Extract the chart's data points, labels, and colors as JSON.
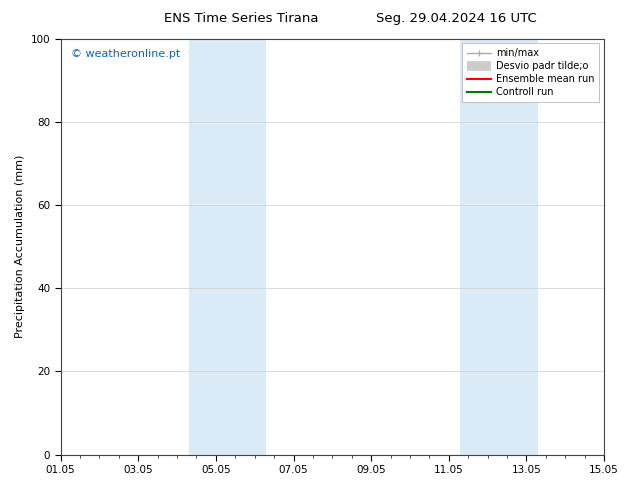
{
  "title_left": "ENS Time Series Tirana",
  "title_right": "Seg. 29.04.2024 16 UTC",
  "ylabel": "Precipitation Accumulation (mm)",
  "watermark": "© weatheronline.pt",
  "watermark_color": "#0066cc",
  "ylim": [
    0,
    100
  ],
  "yticks": [
    0,
    20,
    40,
    60,
    80,
    100
  ],
  "xlim_start": 0.0,
  "xlim_end": 14.0,
  "xtick_positions": [
    0,
    2,
    4,
    6,
    8,
    10,
    12,
    14
  ],
  "xtick_labels": [
    "01.05",
    "03.05",
    "05.05",
    "07.05",
    "09.05",
    "11.05",
    "13.05",
    "15.05"
  ],
  "shaded_regions": [
    {
      "x_start": 3.3,
      "x_end": 5.3,
      "color": "#daeaf7"
    },
    {
      "x_start": 10.3,
      "x_end": 12.3,
      "color": "#daeaf7"
    }
  ],
  "legend_labels": [
    "min/max",
    "Desvio padr tilde;o",
    "Ensemble mean run",
    "Controll run"
  ],
  "legend_colors": [
    "#aaaaaa",
    "#cccccc",
    "#ff0000",
    "#007700"
  ],
  "bg_color": "#ffffff",
  "plot_bg_color": "#ffffff",
  "title_fontsize": 9.5,
  "ylabel_fontsize": 8,
  "tick_fontsize": 7.5,
  "watermark_fontsize": 8,
  "legend_fontsize": 7
}
